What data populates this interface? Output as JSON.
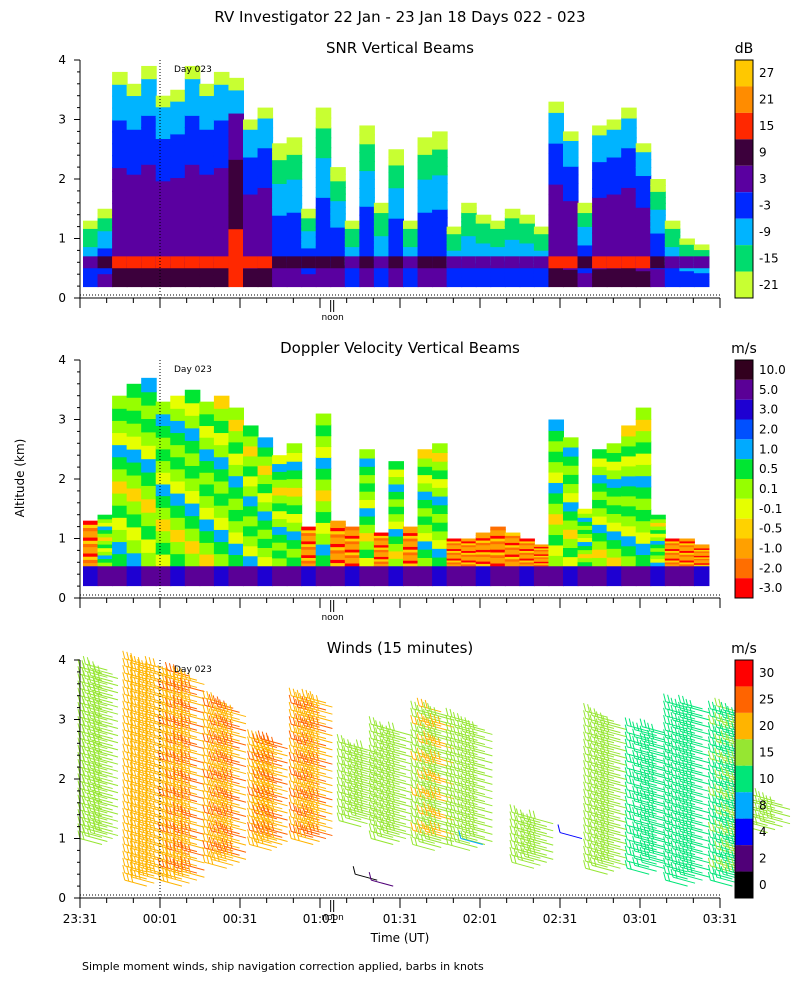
{
  "figure": {
    "title": "RV Investigator  22 Jan - 23 Jan 18 Days 022 - 023",
    "ylabel": "Altitude (km)",
    "xlabel": "Time (UT)",
    "footnote": "Simple moment winds, ship navigation correction applied, barbs in knots",
    "day_marker": "Day 023",
    "noon_label": "noon"
  },
  "chart_data": [
    {
      "type": "heatmap",
      "id": "snr",
      "title": "SNR Vertical Beams",
      "units": "dB",
      "ylim": [
        0,
        4
      ],
      "yticks": [
        0,
        1,
        2,
        3,
        4
      ],
      "colorbar_labels": [
        "27",
        "21",
        "15",
        "9",
        "3",
        "-3",
        "-9",
        "-15",
        "-21"
      ],
      "colorbar_colors": [
        "#ffc800",
        "#ff8c00",
        "#ff2800",
        "#3c003c",
        "#5a00a0",
        "#0028ff",
        "#00b4ff",
        "#00dc6e",
        "#c8ff32"
      ],
      "columns": [
        {
          "t": 0.0,
          "top": 1.3,
          "v": "low"
        },
        {
          "t": 0.08,
          "top": 1.5,
          "v": "mid"
        },
        {
          "t": 0.16,
          "top": 3.8,
          "v": "high"
        },
        {
          "t": 0.24,
          "top": 3.6,
          "v": "high"
        },
        {
          "t": 0.3,
          "top": 3.9,
          "v": "high"
        },
        {
          "t": 0.38,
          "top": 3.4,
          "v": "high"
        },
        {
          "t": 0.46,
          "top": 3.5,
          "v": "high"
        },
        {
          "t": 0.54,
          "top": 3.9,
          "v": "high"
        },
        {
          "t": 0.62,
          "top": 3.6,
          "v": "high"
        },
        {
          "t": 0.7,
          "top": 3.8,
          "v": "high"
        },
        {
          "t": 0.78,
          "top": 3.7,
          "v": "peak"
        },
        {
          "t": 0.86,
          "top": 3.0,
          "v": "high"
        },
        {
          "t": 0.94,
          "top": 3.2,
          "v": "high"
        },
        {
          "t": 1.02,
          "top": 2.6,
          "v": "mid"
        },
        {
          "t": 1.1,
          "top": 2.7,
          "v": "mid"
        },
        {
          "t": 1.18,
          "top": 1.5,
          "v": "mid"
        },
        {
          "t": 1.26,
          "top": 3.2,
          "v": "mid"
        },
        {
          "t": 1.34,
          "top": 2.2,
          "v": "mid"
        },
        {
          "t": 1.42,
          "top": 1.3,
          "v": "low"
        },
        {
          "t": 1.5,
          "top": 2.9,
          "v": "mid"
        },
        {
          "t": 1.58,
          "top": 1.6,
          "v": "low"
        },
        {
          "t": 1.66,
          "top": 2.5,
          "v": "mid"
        },
        {
          "t": 1.74,
          "top": 1.3,
          "v": "low"
        },
        {
          "t": 1.82,
          "top": 2.7,
          "v": "mid"
        },
        {
          "t": 1.9,
          "top": 2.8,
          "v": "mid"
        },
        {
          "t": 1.98,
          "top": 1.2,
          "v": "low"
        },
        {
          "t": 2.06,
          "top": 1.6,
          "v": "low"
        },
        {
          "t": 2.14,
          "top": 1.4,
          "v": "low"
        },
        {
          "t": 2.22,
          "top": 1.3,
          "v": "low"
        },
        {
          "t": 2.3,
          "top": 1.5,
          "v": "low"
        },
        {
          "t": 2.38,
          "top": 1.4,
          "v": "low"
        },
        {
          "t": 2.46,
          "top": 1.2,
          "v": "low"
        },
        {
          "t": 2.54,
          "top": 3.3,
          "v": "high"
        },
        {
          "t": 2.62,
          "top": 2.8,
          "v": "high"
        },
        {
          "t": 2.7,
          "top": 1.6,
          "v": "mid"
        },
        {
          "t": 2.78,
          "top": 2.9,
          "v": "high"
        },
        {
          "t": 2.86,
          "top": 3.0,
          "v": "high"
        },
        {
          "t": 2.94,
          "top": 3.2,
          "v": "high"
        },
        {
          "t": 3.02,
          "top": 2.6,
          "v": "high"
        },
        {
          "t": 3.1,
          "top": 2.0,
          "v": "mid"
        },
        {
          "t": 3.18,
          "top": 1.3,
          "v": "low"
        },
        {
          "t": 3.26,
          "top": 1.0,
          "v": "low"
        },
        {
          "t": 3.34,
          "top": 0.9,
          "v": "low"
        }
      ]
    },
    {
      "type": "heatmap",
      "id": "doppler",
      "title": "Doppler Velocity Vertical Beams",
      "units": "m/s",
      "ylim": [
        0,
        4
      ],
      "yticks": [
        0,
        1,
        2,
        3,
        4
      ],
      "colorbar_labels": [
        "10.0",
        "5.0",
        "3.0",
        "2.0",
        "1.0",
        "0.5",
        "0.1",
        "-0.1",
        "-0.5",
        "-1.0",
        "-2.0",
        "-3.0"
      ],
      "colorbar_colors": [
        "#32001e",
        "#5a0096",
        "#1e00d2",
        "#0050ff",
        "#00aaff",
        "#00e632",
        "#96ff00",
        "#e6ff00",
        "#ffd200",
        "#ffa000",
        "#ff6e00",
        "#ff0000"
      ],
      "columns": [
        {
          "t": 0.0,
          "top": 1.3
        },
        {
          "t": 0.08,
          "top": 1.4
        },
        {
          "t": 0.16,
          "top": 3.4
        },
        {
          "t": 0.24,
          "top": 3.6
        },
        {
          "t": 0.3,
          "top": 3.7
        },
        {
          "t": 0.38,
          "top": 3.3
        },
        {
          "t": 0.46,
          "top": 3.4
        },
        {
          "t": 0.54,
          "top": 3.5
        },
        {
          "t": 0.62,
          "top": 3.3
        },
        {
          "t": 0.7,
          "top": 3.4
        },
        {
          "t": 0.78,
          "top": 3.2
        },
        {
          "t": 0.86,
          "top": 2.9
        },
        {
          "t": 0.94,
          "top": 2.7
        },
        {
          "t": 1.02,
          "top": 2.4
        },
        {
          "t": 1.1,
          "top": 2.6
        },
        {
          "t": 1.18,
          "top": 1.2
        },
        {
          "t": 1.26,
          "top": 3.1
        },
        {
          "t": 1.34,
          "top": 1.3
        },
        {
          "t": 1.42,
          "top": 1.2
        },
        {
          "t": 1.5,
          "top": 2.5
        },
        {
          "t": 1.58,
          "top": 1.1
        },
        {
          "t": 1.66,
          "top": 2.3
        },
        {
          "t": 1.74,
          "top": 1.2
        },
        {
          "t": 1.82,
          "top": 2.5
        },
        {
          "t": 1.9,
          "top": 2.6
        },
        {
          "t": 1.98,
          "top": 1.0
        },
        {
          "t": 2.06,
          "top": 1.0
        },
        {
          "t": 2.14,
          "top": 1.1
        },
        {
          "t": 2.22,
          "top": 1.2
        },
        {
          "t": 2.3,
          "top": 1.1
        },
        {
          "t": 2.38,
          "top": 1.0
        },
        {
          "t": 2.46,
          "top": 0.9
        },
        {
          "t": 2.54,
          "top": 3.0
        },
        {
          "t": 2.62,
          "top": 2.7
        },
        {
          "t": 2.7,
          "top": 1.5
        },
        {
          "t": 2.78,
          "top": 2.5
        },
        {
          "t": 2.86,
          "top": 2.6
        },
        {
          "t": 2.94,
          "top": 2.9
        },
        {
          "t": 3.02,
          "top": 3.2
        },
        {
          "t": 3.1,
          "top": 1.4
        },
        {
          "t": 3.18,
          "top": 1.0
        },
        {
          "t": 3.26,
          "top": 1.0
        },
        {
          "t": 3.34,
          "top": 0.9
        }
      ]
    },
    {
      "type": "wind_barbs",
      "id": "winds",
      "title": "Winds (15 minutes)",
      "units": "m/s",
      "ylim": [
        0,
        4
      ],
      "yticks": [
        0,
        1,
        2,
        3,
        4
      ],
      "colorbar_labels": [
        "30",
        "25",
        "20",
        "15",
        "10",
        "8",
        "4",
        "2",
        "0"
      ],
      "colorbar_colors": [
        "#ff0000",
        "#ff6400",
        "#ffb400",
        "#96e632",
        "#00e678",
        "#00aaff",
        "#0000ff",
        "#500078",
        "#000000"
      ],
      "groups": [
        {
          "t0": 0.0,
          "t1": 0.1,
          "bottom": 1.0,
          "top": 4.0,
          "speed": 18
        },
        {
          "t0": 0.28,
          "t1": 0.42,
          "bottom": 0.3,
          "top": 4.1,
          "speed": 22
        },
        {
          "t0": 0.5,
          "t1": 0.64,
          "bottom": 0.3,
          "top": 3.9,
          "speed": 24
        },
        {
          "t0": 0.78,
          "t1": 0.9,
          "bottom": 0.6,
          "top": 3.4,
          "speed": 24
        },
        {
          "t0": 1.06,
          "t1": 1.16,
          "bottom": 0.9,
          "top": 2.8,
          "speed": 24
        },
        {
          "t0": 1.32,
          "t1": 1.44,
          "bottom": 1.0,
          "top": 3.5,
          "speed": 24
        },
        {
          "t0": 1.62,
          "t1": 1.74,
          "bottom": 1.3,
          "top": 2.7,
          "speed": 18
        },
        {
          "t0": 1.82,
          "t1": 1.94,
          "bottom": 1.0,
          "top": 3.0,
          "speed": 16
        },
        {
          "t0": 2.08,
          "t1": 2.2,
          "bottom": 0.9,
          "top": 3.3,
          "speed": 19
        },
        {
          "t0": 2.3,
          "t1": 2.44,
          "bottom": 0.9,
          "top": 3.1,
          "speed": 18
        },
        {
          "t0": 2.7,
          "t1": 2.82,
          "bottom": 0.6,
          "top": 1.5,
          "speed": 17
        },
        {
          "t0": 3.16,
          "t1": 3.28,
          "bottom": 0.5,
          "top": 3.2,
          "speed": 18
        },
        {
          "t0": 3.42,
          "t1": 3.56,
          "bottom": 0.5,
          "top": 3.0,
          "speed": 12
        },
        {
          "t0": 3.66,
          "t1": 3.8,
          "bottom": 0.3,
          "top": 3.4,
          "speed": 13
        },
        {
          "t0": 3.94,
          "t1": 4.06,
          "bottom": 0.3,
          "top": 3.3,
          "speed": 14
        },
        {
          "t0": 4.16,
          "t1": 4.3,
          "bottom": 1.2,
          "top": 1.8,
          "speed": 16
        }
      ],
      "small_barbs": [
        {
          "t": 1.72,
          "alt": 0.4,
          "speed": 1
        },
        {
          "t": 1.82,
          "alt": 0.3,
          "speed": 2
        },
        {
          "t": 2.38,
          "alt": 1.0,
          "speed": 8
        },
        {
          "t": 3.0,
          "alt": 1.1,
          "speed": 6
        }
      ]
    }
  ],
  "x_axis": {
    "tick_labels": [
      "23:31",
      "00:01",
      "00:31",
      "01:01",
      "01:31",
      "02:01",
      "02:31",
      "03:01",
      "03:31"
    ],
    "minutes_start": 0,
    "minutes_end": 240,
    "day_boundary_minutes": 30,
    "noon_minutes": 94
  },
  "colors": {
    "axis": "#000000",
    "background": "#ffffff"
  }
}
